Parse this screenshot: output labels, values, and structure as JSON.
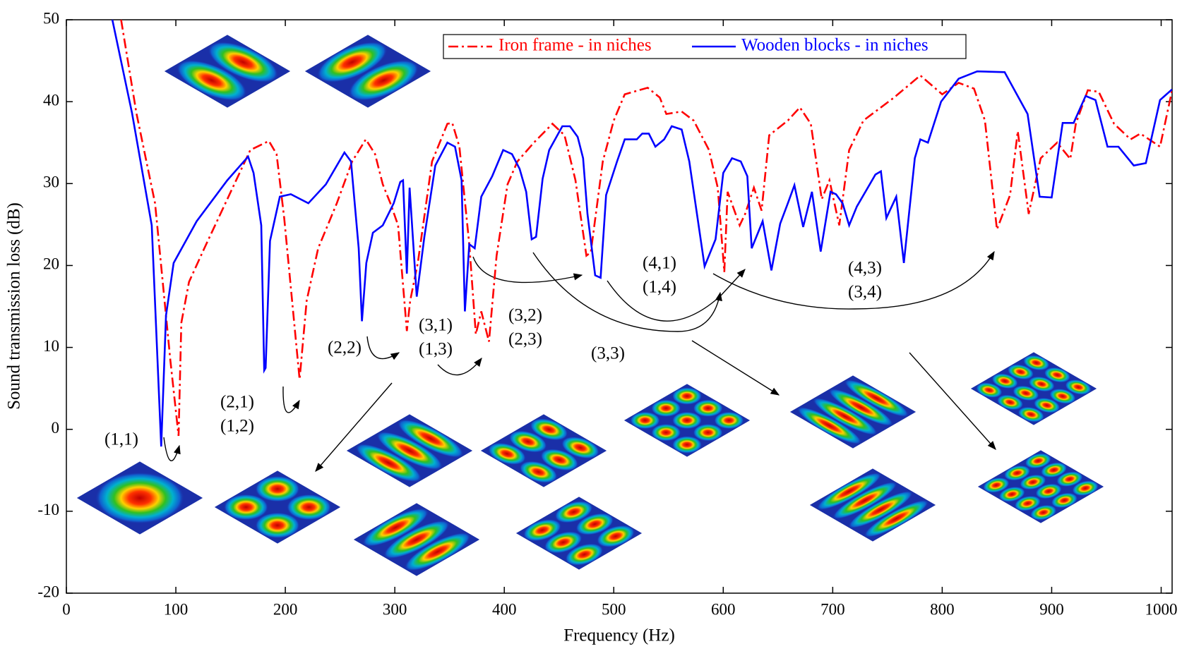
{
  "chart_data": {
    "type": "line",
    "x_label": "Frequency (Hz)",
    "y_label": "Sound transmission loss (dB)",
    "xlim": [
      0,
      1010
    ],
    "ylim": [
      -20,
      50
    ],
    "xticks": [
      0,
      100,
      200,
      300,
      400,
      500,
      600,
      700,
      800,
      900,
      1000
    ],
    "yticks": [
      -20,
      -10,
      0,
      10,
      20,
      30,
      40,
      50
    ],
    "legend": "top",
    "series": [
      {
        "name": "Iron frame - in niches",
        "color": "#ff0000",
        "dash": "dashdot",
        "x": [
          50,
          64,
          81,
          95,
          102.5,
          105,
          112,
          126,
          147,
          168,
          185,
          192,
          199,
          213,
          219.5,
          230,
          247,
          261,
          273.5,
          282,
          289,
          296,
          303,
          311,
          314,
          321,
          334,
          348,
          352.5,
          359,
          368,
          374,
          379,
          386,
          393,
          403,
          412,
          427,
          444,
          455,
          465,
          475,
          479,
          490,
          500,
          510,
          531,
          542,
          548,
          562,
          573,
          587,
          595,
          601,
          604,
          615,
          620,
          628,
          635,
          642,
          659,
          670,
          680,
          690,
          697,
          706,
          715,
          728,
          756,
          780,
          800,
          815,
          829,
          839,
          850,
          862,
          869,
          879,
          890,
          905,
          917,
          922,
          933,
          943,
          957,
          972,
          981,
          999,
          1010
        ],
        "values": [
          50,
          38.6,
          27.6,
          8.4,
          -0.8,
          13,
          18,
          22.1,
          28.1,
          34.1,
          35.2,
          33.6,
          25.8,
          6.1,
          15.7,
          22.1,
          27.6,
          32.7,
          35.4,
          33.6,
          29.9,
          27.6,
          24.9,
          12,
          15.7,
          20.3,
          32.7,
          37.3,
          37.4,
          34.5,
          22.6,
          11.6,
          14.4,
          10.7,
          21.2,
          29.9,
          32.7,
          35,
          37.3,
          35.9,
          30.4,
          21.2,
          21.6,
          32.7,
          37.7,
          40.9,
          41.7,
          40.5,
          38.5,
          38.8,
          37.7,
          34.1,
          29.5,
          19.2,
          29,
          24.9,
          26.3,
          29.5,
          26.7,
          35.9,
          37.7,
          39.3,
          37.3,
          28.1,
          30.4,
          24.9,
          34.1,
          37.7,
          40.5,
          43.2,
          40.9,
          42.3,
          41.6,
          37.7,
          24.4,
          28.6,
          36.4,
          26.3,
          33.1,
          35,
          33,
          37.3,
          41.4,
          41.2,
          37.3,
          35.4,
          36.1,
          34.5,
          41.4
        ]
      },
      {
        "name": "Wooden blocks - in niches",
        "color": "#0000ff",
        "dash": "solid",
        "x": [
          42,
          60,
          78,
          86.6,
          91,
          98,
          119,
          147,
          166,
          171,
          178,
          180.7,
          182,
          186,
          195,
          205,
          221,
          237,
          254,
          260,
          267,
          270,
          274,
          280,
          289,
          299,
          305,
          307.5,
          311,
          313.5,
          320,
          327,
          337,
          348,
          355,
          361,
          364,
          368,
          373,
          379,
          389,
          399,
          407,
          414,
          420,
          425,
          429,
          435,
          441,
          453,
          460,
          467,
          472,
          476,
          483,
          488,
          493,
          503,
          510,
          521,
          526,
          532,
          538,
          546,
          553,
          562,
          569,
          583,
          593,
          600,
          608,
          616,
          622,
          626,
          636,
          644,
          652,
          659,
          665,
          673,
          681,
          689,
          698,
          703,
          709,
          715,
          722,
          739,
          744,
          749,
          758,
          765,
          775,
          780,
          787,
          799,
          815,
          832,
          857,
          878,
          889,
          900,
          910,
          920,
          931,
          940,
          951,
          961,
          975,
          986,
          999,
          1010
        ],
        "values": [
          50,
          38.6,
          24.9,
          -2.1,
          13.9,
          20.3,
          25.4,
          30.4,
          33.3,
          31.3,
          24.9,
          7.2,
          7.5,
          23,
          28.4,
          28.7,
          27.6,
          29.9,
          33.8,
          32.7,
          22.1,
          13.2,
          20.3,
          24,
          24.9,
          27.6,
          30.2,
          30.4,
          19,
          29.5,
          16.2,
          23.5,
          32.2,
          35,
          34.5,
          30.4,
          14.4,
          22.6,
          22.1,
          28.4,
          30.9,
          34.1,
          33.6,
          31.8,
          29,
          23.2,
          23.5,
          30.6,
          34.1,
          37,
          37,
          35.7,
          33.1,
          26.3,
          18.8,
          18.5,
          28.6,
          32.7,
          35.4,
          35.4,
          36.1,
          36.1,
          34.5,
          35.4,
          37,
          36.6,
          32.7,
          19.9,
          23.2,
          31.3,
          33.1,
          32.7,
          30.9,
          22.1,
          25.4,
          19.4,
          25.1,
          27.6,
          29.8,
          24.7,
          29,
          21.7,
          29,
          28.7,
          27.6,
          24.9,
          27.2,
          31.1,
          31.5,
          25.8,
          28.4,
          20.3,
          33.1,
          35.4,
          35,
          40,
          42.8,
          43.7,
          43.6,
          38.5,
          28.4,
          28.3,
          37.4,
          37.4,
          40.7,
          40.2,
          34.5,
          34.5,
          32.2,
          32.5,
          40.2,
          41.5
        ]
      }
    ],
    "annotations": [
      [
        "(1,1)"
      ],
      [
        "(2,1)",
        "(1,2)"
      ],
      [
        "(2,2)"
      ],
      [
        "(3,1)",
        "(1,3)"
      ],
      [
        "(3,2)",
        "(2,3)"
      ],
      [
        "(3,3)"
      ],
      [
        "(4,1)",
        "(1,4)"
      ],
      [
        "(4,3)",
        "(3,4)"
      ]
    ]
  }
}
